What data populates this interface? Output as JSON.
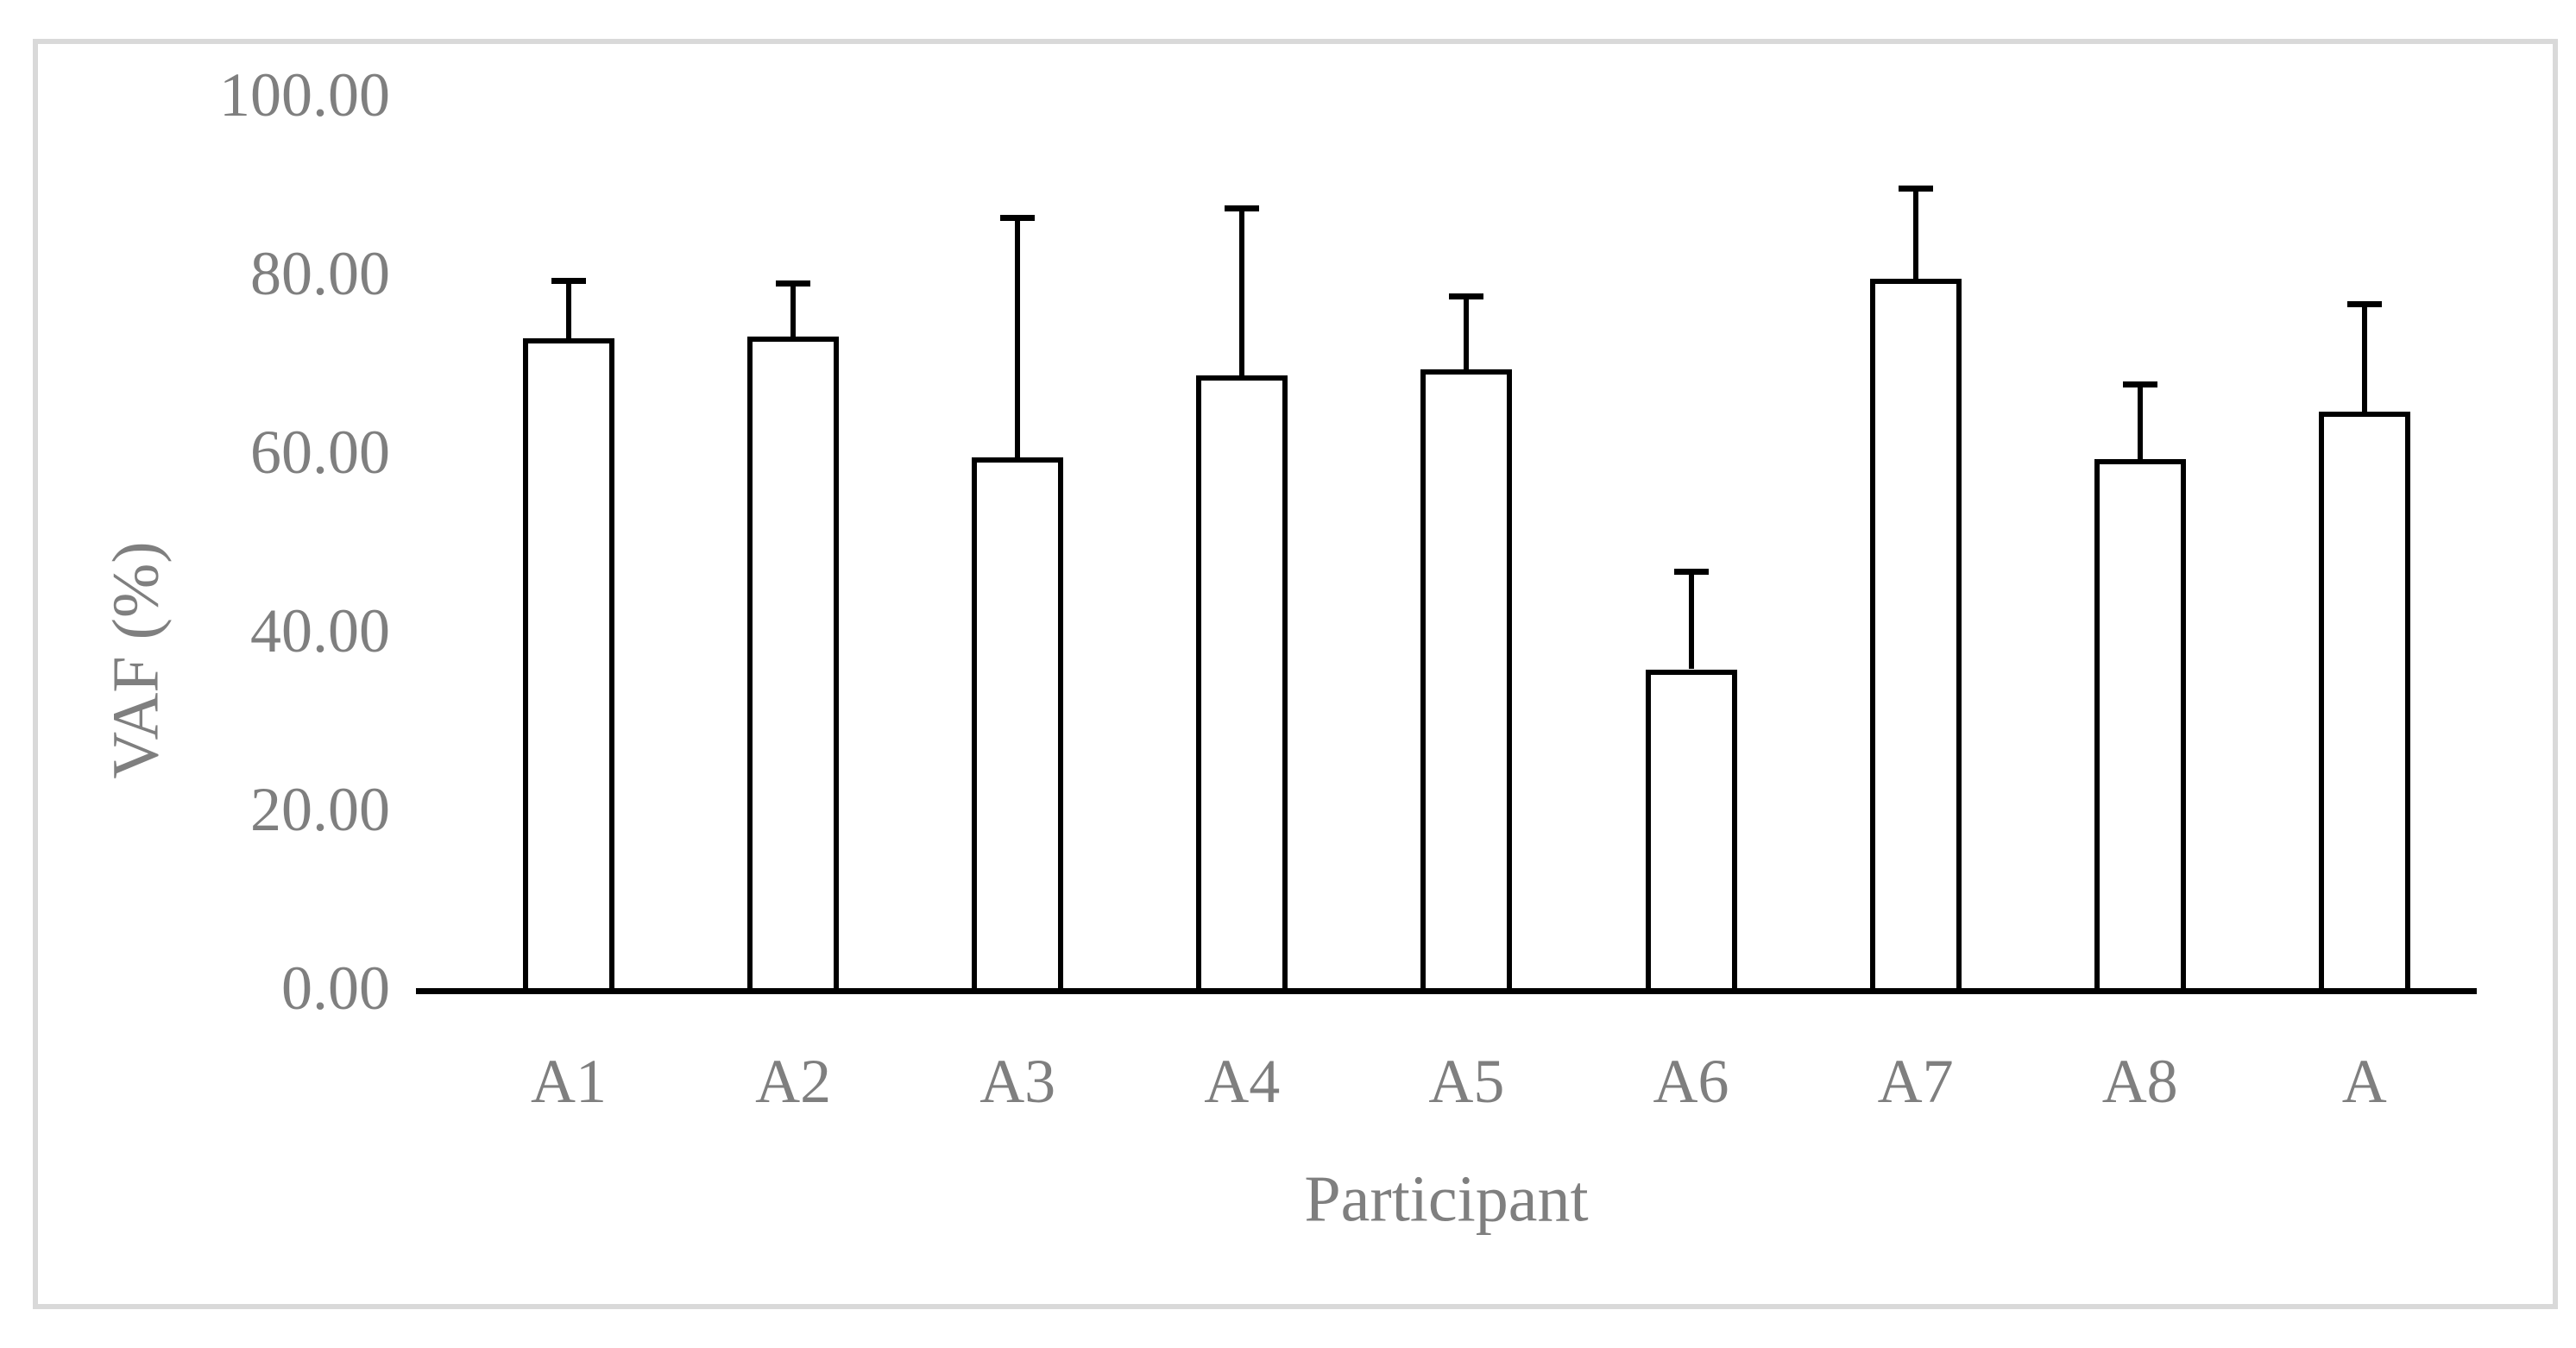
{
  "figure": {
    "background": "#ffffff",
    "frame_border_color": "#d9d9d9",
    "text_color": "#7f7f7f",
    "bar_fill_color": "#ffffff",
    "bar_outline_color": "#000000",
    "error_bar_color": "#000000"
  },
  "chart_data": {
    "type": "bar",
    "title": "",
    "xlabel": "Participant",
    "ylabel": "VAF (%)",
    "categories": [
      "A1",
      "A2",
      "A3",
      "A4",
      "A5",
      "A6",
      "A7",
      "A8",
      "A"
    ],
    "series": [
      {
        "name": "VAF",
        "values": [
          72.8,
          72.9,
          59.4,
          68.6,
          69.3,
          35.7,
          79.4,
          59.2,
          64.5
        ],
        "errors_upper": [
          6.4,
          6.0,
          26.9,
          18.7,
          8.2,
          11.0,
          10.2,
          8.4,
          12.1
        ]
      }
    ],
    "ylim": [
      0,
      100
    ],
    "y_ticks": [
      {
        "value": 0,
        "label": "0.00"
      },
      {
        "value": 20,
        "label": "20.00"
      },
      {
        "value": 40,
        "label": "40.00"
      },
      {
        "value": 60,
        "label": "60.00"
      },
      {
        "value": 80,
        "label": "80.00"
      },
      {
        "value": 100,
        "label": "100.00"
      }
    ],
    "grid": false,
    "legend": false,
    "error_bars": "upper-only with horizontal caps",
    "bar_style": "white fill with black outline"
  }
}
